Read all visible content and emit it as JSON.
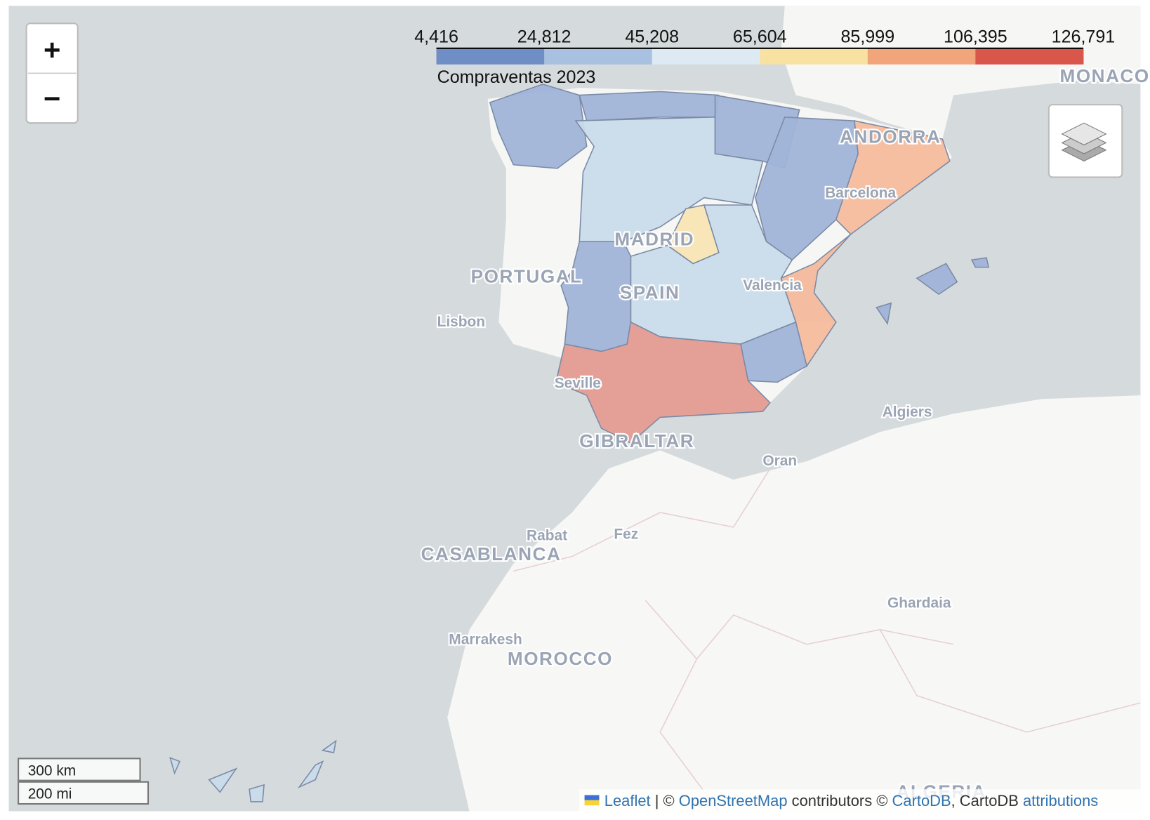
{
  "controls": {
    "zoom_in": "+",
    "zoom_out": "−"
  },
  "legend": {
    "title": "Compraventas 2023",
    "ticks": [
      "4,416",
      "24,812",
      "45,208",
      "65,604",
      "85,999",
      "106,395",
      "126,791"
    ],
    "colors": [
      "#6f8ec5",
      "#a9c1e0",
      "#ddeaf3",
      "#f8e2a2",
      "#f2a57a",
      "#d9564b"
    ]
  },
  "map_labels": [
    "MONACO",
    "ANDORRA",
    "Barcelona",
    "MADRID",
    "PORTUGAL",
    "SPAIN",
    "Valencia",
    "Lisbon",
    "Seville",
    "Algiers",
    "GIBRALTAR",
    "Oran",
    "Rabat",
    "Fez",
    "CASABLANCA",
    "Ghardaia",
    "Marrakesh",
    "MOROCCO",
    "ALGERIA"
  ],
  "scale": {
    "metric": "300 km",
    "imperial": "200 mi"
  },
  "attribution": {
    "leaflet": "Leaflet",
    "sep": "| ©",
    "osm": "OpenStreetMap",
    "contrib": "contributors ©",
    "carto": "CartoDB",
    "carto2": ", CartoDB",
    "attrib": "attributions"
  }
}
